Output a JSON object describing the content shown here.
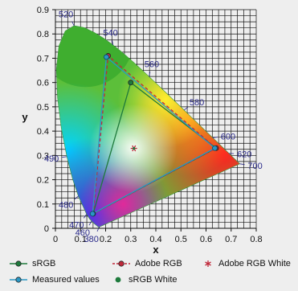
{
  "chart_data": {
    "type": "scatter",
    "title": "",
    "xlabel": "x",
    "ylabel": "y",
    "xlim": [
      0,
      0.8
    ],
    "ylim": [
      0,
      0.9
    ],
    "xticks": [
      "0",
      "0.1",
      "0.2",
      "0.3",
      "0.4",
      "0.5",
      "0.6",
      "0.7",
      "0.8"
    ],
    "yticks": [
      "0",
      "0.1",
      "0.2",
      "0.3",
      "0.4",
      "0.5",
      "0.6",
      "0.7",
      "0.8",
      "0.9"
    ],
    "grid": true,
    "legend_position": "bottom",
    "spectral_locus": [
      {
        "x": 0.1741,
        "y": 0.005
      },
      {
        "x": 0.1738,
        "y": 0.0049
      },
      {
        "x": 0.1736,
        "y": 0.0049
      },
      {
        "x": 0.1733,
        "y": 0.0048
      },
      {
        "x": 0.173,
        "y": 0.0048
      },
      {
        "x": 0.1726,
        "y": 0.0048
      },
      {
        "x": 0.1721,
        "y": 0.0048
      },
      {
        "x": 0.1714,
        "y": 0.0051
      },
      {
        "x": 0.1703,
        "y": 0.0058
      },
      {
        "x": 0.1689,
        "y": 0.0069
      },
      {
        "x": 0.1669,
        "y": 0.0086
      },
      {
        "x": 0.1644,
        "y": 0.0109
      },
      {
        "x": 0.1611,
        "y": 0.0138
      },
      {
        "x": 0.1566,
        "y": 0.0177
      },
      {
        "x": 0.151,
        "y": 0.0227
      },
      {
        "x": 0.144,
        "y": 0.0297
      },
      {
        "x": 0.1355,
        "y": 0.0399
      },
      {
        "x": 0.1241,
        "y": 0.0578
      },
      {
        "x": 0.0913,
        "y": 0.1327
      },
      {
        "x": 0.0687,
        "y": 0.2007
      },
      {
        "x": 0.0454,
        "y": 0.295
      },
      {
        "x": 0.0235,
        "y": 0.4127
      },
      {
        "x": 0.0082,
        "y": 0.5384
      },
      {
        "x": 0.0039,
        "y": 0.6548
      },
      {
        "x": 0.0139,
        "y": 0.7502
      },
      {
        "x": 0.0389,
        "y": 0.812
      },
      {
        "x": 0.0743,
        "y": 0.8338
      },
      {
        "x": 0.1142,
        "y": 0.8262
      },
      {
        "x": 0.1547,
        "y": 0.8059
      },
      {
        "x": 0.1929,
        "y": 0.7816
      },
      {
        "x": 0.2296,
        "y": 0.7543
      },
      {
        "x": 0.2658,
        "y": 0.7243
      },
      {
        "x": 0.3016,
        "y": 0.6923
      },
      {
        "x": 0.3373,
        "y": 0.6589
      },
      {
        "x": 0.3731,
        "y": 0.6245
      },
      {
        "x": 0.4087,
        "y": 0.5896
      },
      {
        "x": 0.4441,
        "y": 0.5547
      },
      {
        "x": 0.4788,
        "y": 0.5202
      },
      {
        "x": 0.5125,
        "y": 0.4866
      },
      {
        "x": 0.5448,
        "y": 0.4544
      },
      {
        "x": 0.5752,
        "y": 0.4242
      },
      {
        "x": 0.6029,
        "y": 0.3965
      },
      {
        "x": 0.627,
        "y": 0.3725
      },
      {
        "x": 0.6482,
        "y": 0.3514
      },
      {
        "x": 0.6658,
        "y": 0.334
      },
      {
        "x": 0.6801,
        "y": 0.3197
      },
      {
        "x": 0.6915,
        "y": 0.3083
      },
      {
        "x": 0.7006,
        "y": 0.2993
      },
      {
        "x": 0.7079,
        "y": 0.292
      },
      {
        "x": 0.714,
        "y": 0.2859
      },
      {
        "x": 0.719,
        "y": 0.2809
      },
      {
        "x": 0.723,
        "y": 0.277
      },
      {
        "x": 0.726,
        "y": 0.274
      },
      {
        "x": 0.7283,
        "y": 0.2717
      },
      {
        "x": 0.73,
        "y": 0.27
      },
      {
        "x": 0.7311,
        "y": 0.2689
      },
      {
        "x": 0.732,
        "y": 0.268
      },
      {
        "x": 0.7327,
        "y": 0.2673
      },
      {
        "x": 0.7334,
        "y": 0.2666
      },
      {
        "x": 0.734,
        "y": 0.266
      },
      {
        "x": 0.7344,
        "y": 0.2656
      },
      {
        "x": 0.7346,
        "y": 0.2654
      },
      {
        "x": 0.7347,
        "y": 0.2653
      }
    ],
    "wavelength_labels": [
      {
        "text": "380",
        "x": 0.1741,
        "y": 0.005
      },
      {
        "text": "460",
        "x": 0.144,
        "y": 0.0297
      },
      {
        "text": "470",
        "x": 0.1241,
        "y": 0.0578
      },
      {
        "text": "480",
        "x": 0.0913,
        "y": 0.1327
      },
      {
        "text": "490",
        "x": 0.0454,
        "y": 0.295
      },
      {
        "text": "520",
        "x": 0.0743,
        "y": 0.8338
      },
      {
        "text": "540",
        "x": 0.2296,
        "y": 0.7543
      },
      {
        "text": "560",
        "x": 0.3731,
        "y": 0.6245
      },
      {
        "text": "580",
        "x": 0.5125,
        "y": 0.4866
      },
      {
        "text": "600",
        "x": 0.627,
        "y": 0.3725
      },
      {
        "text": "620",
        "x": 0.6915,
        "y": 0.3083
      },
      {
        "text": "700",
        "x": 0.7347,
        "y": 0.2653
      }
    ],
    "series": [
      {
        "name": "sRGB",
        "color": "#1e7a3c",
        "dash": "solid",
        "points": [
          {
            "x": 0.64,
            "y": 0.33
          },
          {
            "x": 0.3,
            "y": 0.6
          },
          {
            "x": 0.15,
            "y": 0.06
          }
        ]
      },
      {
        "name": "Adobe RGB",
        "color": "#c0283a",
        "dash": "dashed",
        "points": [
          {
            "x": 0.64,
            "y": 0.33
          },
          {
            "x": 0.21,
            "y": 0.71
          },
          {
            "x": 0.15,
            "y": 0.06
          }
        ]
      },
      {
        "name": "Measured values",
        "color": "#2a97c4",
        "dash": "solid",
        "points": [
          {
            "x": 0.635,
            "y": 0.33
          },
          {
            "x": 0.203,
            "y": 0.705
          },
          {
            "x": 0.148,
            "y": 0.06
          }
        ]
      }
    ],
    "white_points": [
      {
        "name": "Adobe RGB White",
        "x": 0.3127,
        "y": 0.329,
        "color": "#c0283a",
        "marker": "asterisk"
      },
      {
        "name": "sRGB White",
        "x": 0.3127,
        "y": 0.329,
        "color": "#1e7a3c",
        "marker": "dot"
      }
    ]
  },
  "legend": {
    "items": [
      {
        "label": "sRGB",
        "color": "#1e7a3c",
        "kind": "line-dot",
        "dash": "solid"
      },
      {
        "label": "Adobe RGB",
        "color": "#c0283a",
        "kind": "line-dot",
        "dash": "dashed"
      },
      {
        "label": "Adobe RGB White",
        "color": "#c0283a",
        "kind": "asterisk"
      },
      {
        "label": "Measured values",
        "color": "#2a97c4",
        "kind": "line-dot",
        "dash": "solid"
      },
      {
        "label": "sRGB White",
        "color": "#1e7a3c",
        "kind": "dot"
      }
    ]
  }
}
